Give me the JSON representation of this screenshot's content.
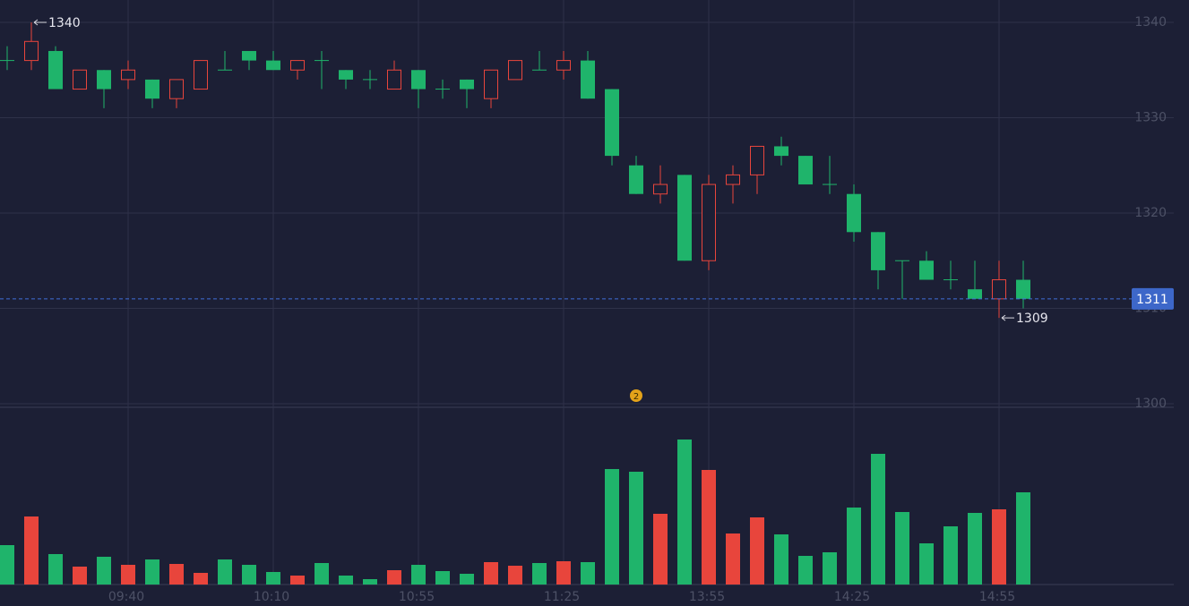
{
  "chart_data": {
    "type": "candlestick",
    "categories": [
      null,
      null,
      null,
      null,
      null,
      "09:40",
      null,
      null,
      null,
      null,
      null,
      "10:10",
      null,
      null,
      null,
      null,
      null,
      "10:55",
      null,
      null,
      null,
      null,
      null,
      "11:25",
      null,
      null,
      null,
      null,
      null,
      "13:55",
      null,
      null,
      null,
      null,
      null,
      "14:25",
      null,
      null,
      null,
      null,
      null,
      "14:55",
      null
    ],
    "open": [
      1336,
      1336,
      1337,
      1333,
      1335,
      1334,
      1334,
      1332,
      1333,
      1335,
      1337,
      1336,
      1335,
      1336,
      1335,
      1334,
      1333,
      1335,
      1333,
      1334,
      1332,
      1334,
      1335,
      1335,
      1336,
      1333,
      1325,
      1322,
      1324,
      1315,
      1323,
      1324,
      1327,
      1326,
      1323,
      1322,
      1318,
      1315,
      1315,
      1313,
      1312,
      1311,
      1313
    ],
    "high": [
      1337.5,
      1340,
      1337.5,
      1335,
      1335,
      1336,
      1334,
      1334,
      1336,
      1337,
      1337,
      1337,
      1336,
      1337,
      1335,
      1335,
      1336,
      1335,
      1334,
      1334,
      1335,
      1336,
      1337,
      1337,
      1337,
      1333,
      1326,
      1325,
      1324,
      1324,
      1325,
      1327,
      1328,
      1326,
      1326,
      1323,
      1318,
      1315,
      1316,
      1315,
      1315,
      1315,
      1315
    ],
    "low": [
      1335,
      1335,
      1333,
      1333,
      1331,
      1333,
      1331,
      1331,
      1333,
      1335,
      1335,
      1335,
      1334,
      1333,
      1333,
      1333,
      1333,
      1331,
      1332,
      1331,
      1331,
      1334,
      1335,
      1334,
      1332,
      1325,
      1322,
      1321,
      1315,
      1314,
      1321,
      1322,
      1325,
      1323,
      1322,
      1317,
      1312,
      1311,
      1313,
      1312,
      1311,
      1309,
      1310
    ],
    "close": [
      1336,
      1338,
      1333,
      1335,
      1333,
      1335,
      1332,
      1334,
      1336,
      1335,
      1336,
      1335,
      1336,
      1336,
      1334,
      1334,
      1335,
      1333,
      1333,
      1333,
      1335,
      1336,
      1335,
      1336,
      1332,
      1326,
      1322,
      1323,
      1315,
      1323,
      1324,
      1327,
      1326,
      1323,
      1323,
      1318,
      1314,
      1315,
      1313,
      1313,
      1311,
      1313,
      1311
    ],
    "volume": [
      44,
      76,
      34,
      20,
      31,
      22,
      28,
      23,
      13,
      28,
      22,
      14,
      10,
      24,
      10,
      6,
      16,
      22,
      15,
      12,
      25,
      21,
      24,
      26,
      25,
      129,
      126,
      79,
      162,
      128,
      57,
      75,
      56,
      32,
      36,
      86,
      146,
      81,
      46,
      65,
      80,
      84,
      103
    ],
    "up_color": "#e8453c",
    "down_color": "#1fb46b",
    "ylim": [
      1300,
      1340
    ],
    "yticks": [
      1300,
      1310,
      1320,
      1330,
      1340
    ],
    "grid": true,
    "last_price": 1311,
    "max_label": 1340,
    "min_label": 1309,
    "event_marker": "2"
  }
}
